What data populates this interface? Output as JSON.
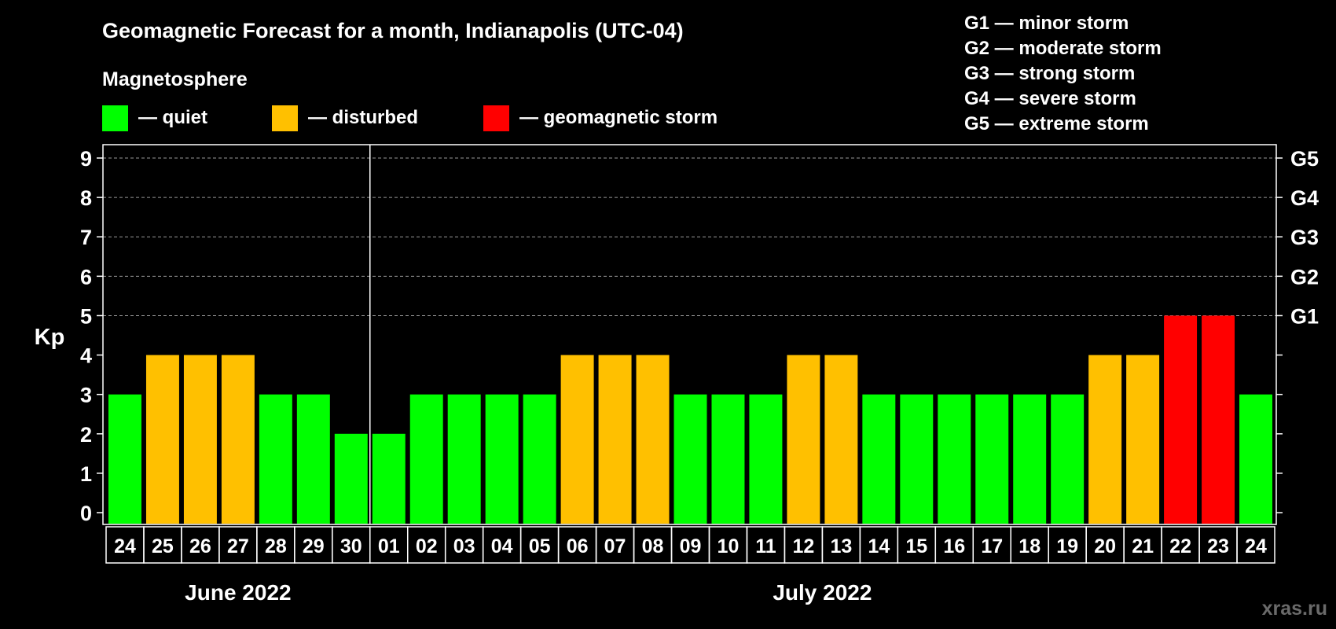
{
  "chart_data": {
    "type": "bar",
    "title": "Geomagnetic Forecast for a month, Indianapolis (UTC-04)",
    "legend_title": "Magnetosphere",
    "legend": [
      {
        "key": "quiet",
        "label": "— quiet",
        "color": "#00ff00"
      },
      {
        "key": "disturbed",
        "label": "— disturbed",
        "color": "#ffc000"
      },
      {
        "key": "storm",
        "label": "— geomagnetic storm",
        "color": "#ff0000"
      }
    ],
    "storm_scale": [
      "G1 — minor storm",
      "G2 — moderate storm",
      "G3 — strong storm",
      "G4 — severe storm",
      "G5 — extreme storm"
    ],
    "ylabel": "Kp",
    "ylim": [
      0,
      9
    ],
    "yticks": [
      "0",
      "1",
      "2",
      "3",
      "4",
      "5",
      "6",
      "7",
      "8",
      "9"
    ],
    "right_ticks": [
      {
        "value": 5,
        "label": "G1"
      },
      {
        "value": 6,
        "label": "G2"
      },
      {
        "value": 7,
        "label": "G3"
      },
      {
        "value": 8,
        "label": "G4"
      },
      {
        "value": 9,
        "label": "G5"
      }
    ],
    "grid": "dashed at Kp 5–9",
    "categories": [
      "24",
      "25",
      "26",
      "27",
      "28",
      "29",
      "30",
      "01",
      "02",
      "03",
      "04",
      "05",
      "06",
      "07",
      "08",
      "09",
      "10",
      "11",
      "12",
      "13",
      "14",
      "15",
      "16",
      "17",
      "18",
      "19",
      "20",
      "21",
      "22",
      "23",
      "24"
    ],
    "values": [
      3,
      4,
      4,
      4,
      3,
      3,
      2,
      2,
      3,
      3,
      3,
      3,
      4,
      4,
      4,
      3,
      3,
      3,
      4,
      4,
      3,
      3,
      3,
      3,
      3,
      3,
      4,
      4,
      5,
      5,
      3
    ],
    "months": [
      {
        "label": "June 2022",
        "first_index": 0,
        "last_index": 6
      },
      {
        "label": "July 2022",
        "first_index": 7,
        "last_index": 30
      }
    ]
  },
  "watermark": "xras.ru"
}
